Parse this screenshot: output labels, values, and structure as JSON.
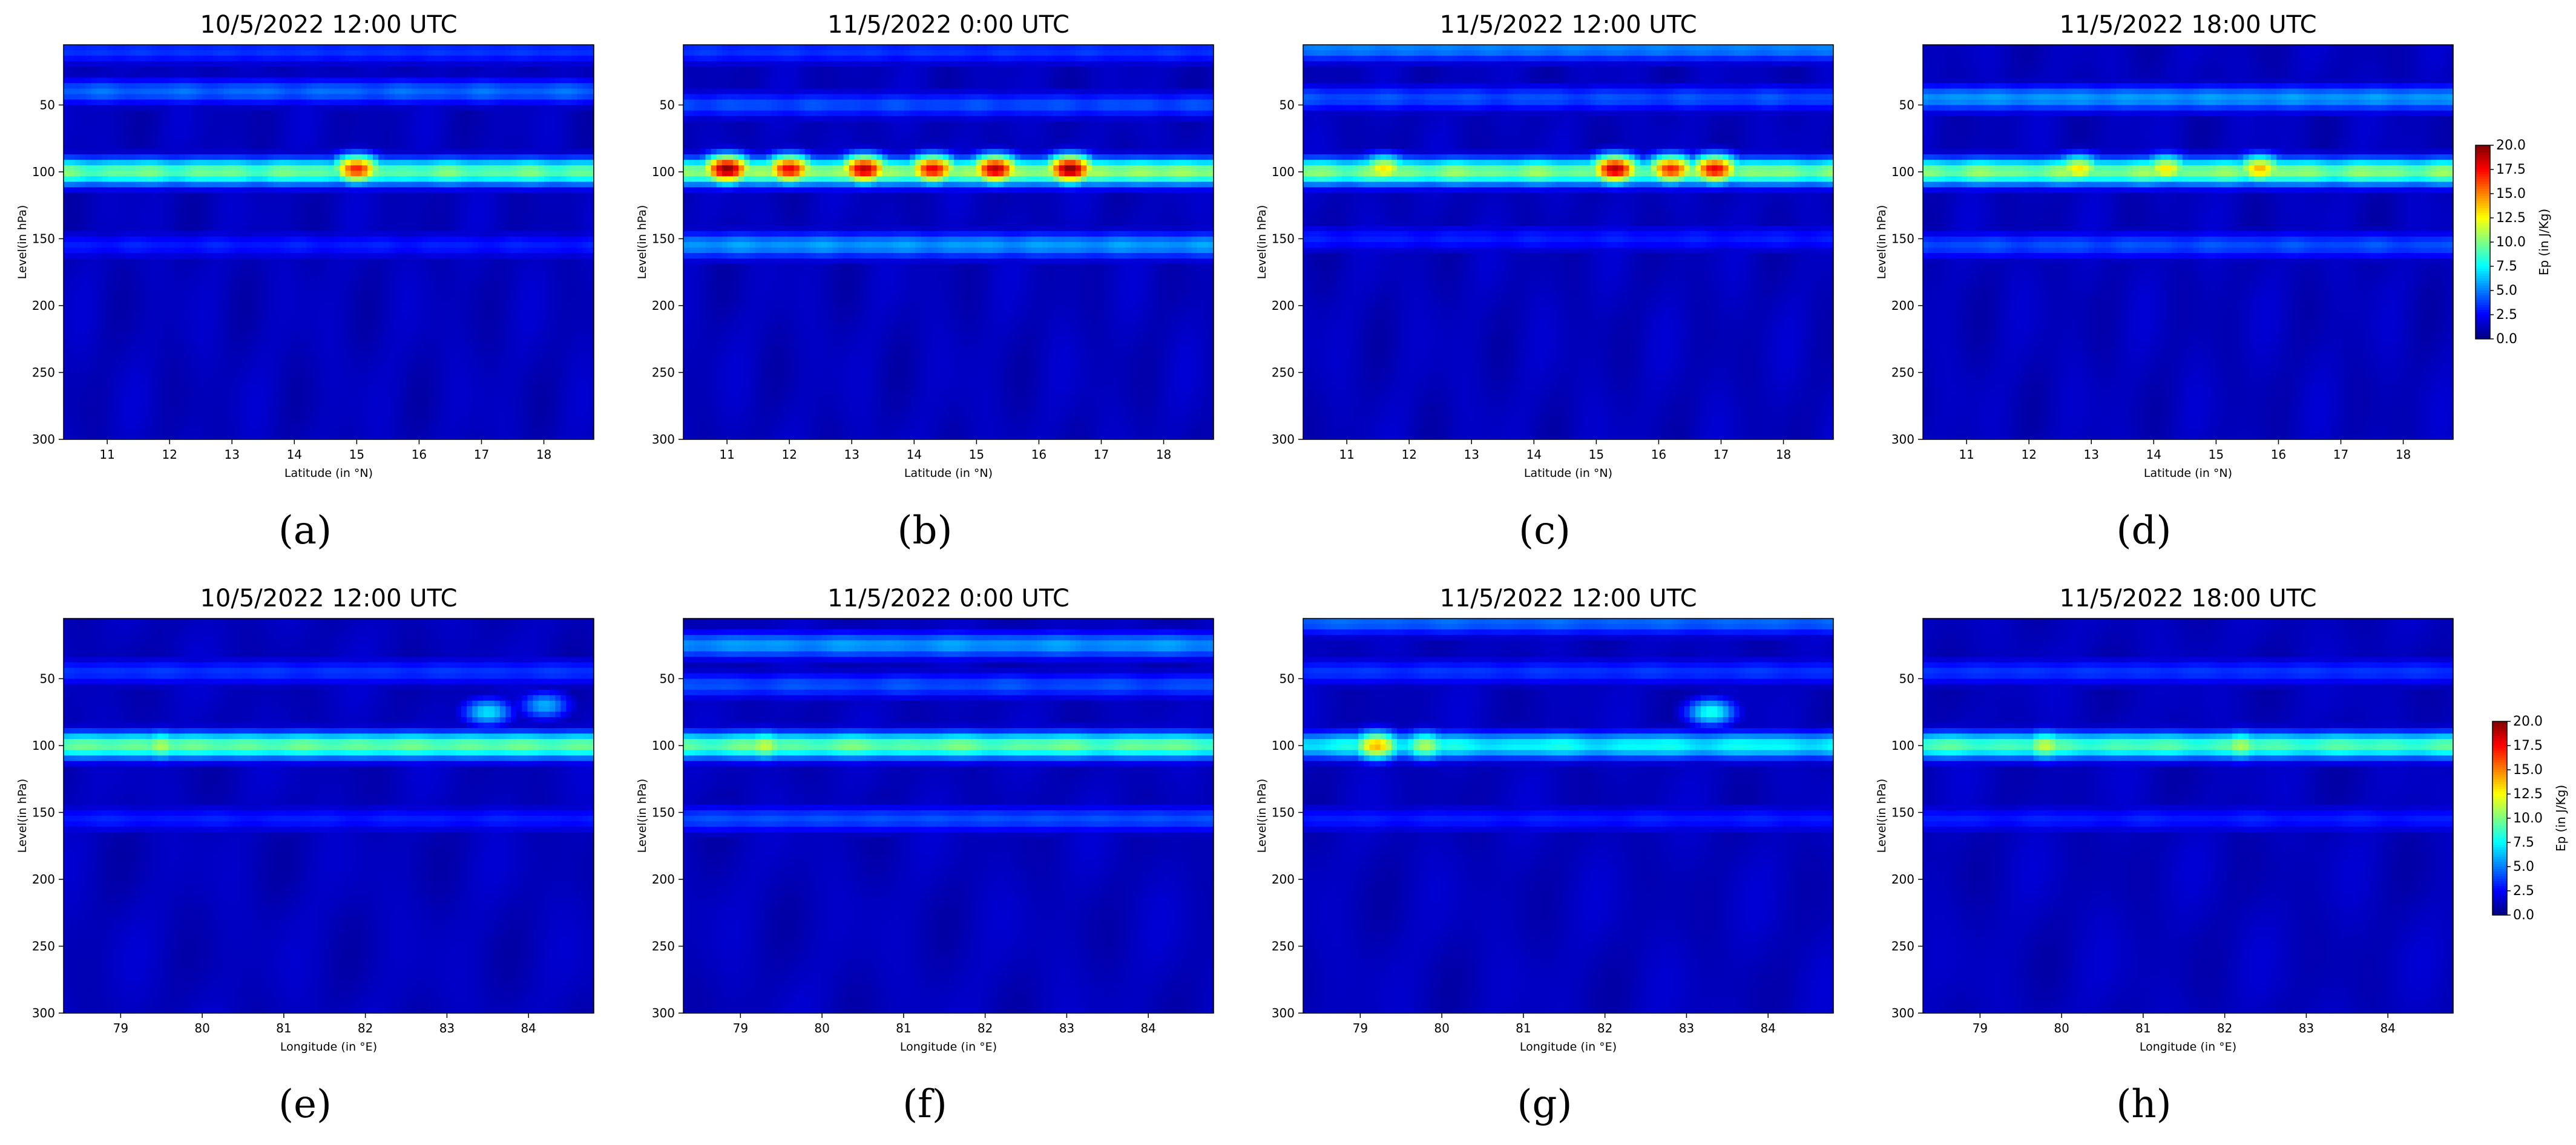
{
  "figure": {
    "colormap": "jet",
    "colorbar": {
      "label": "Ep (in J/Kg)",
      "ticks": [
        "0.0",
        "2.5",
        "5.0",
        "7.5",
        "10.0",
        "12.5",
        "15.0",
        "17.5",
        "20.0"
      ],
      "range": [
        0,
        20
      ]
    }
  },
  "chart_data": [
    {
      "id": "a",
      "caption": "(a)",
      "type": "heatmap",
      "title": "10/5/2022  12:00 UTC",
      "xlabel": "Latitude (in °N)",
      "ylabel": "Level(in hPa)",
      "xlim": [
        10.3,
        18.8
      ],
      "ylim": [
        300,
        5
      ],
      "y_inverted": true,
      "xticks": [
        "11",
        "12",
        "13",
        "14",
        "15",
        "16",
        "17",
        "18"
      ],
      "yticks": [
        "50",
        "100",
        "150",
        "200",
        "250",
        "300"
      ],
      "zlim": [
        0,
        20
      ],
      "bands": [
        {
          "level": 100,
          "value": 9.5
        },
        {
          "level": 40,
          "value": 4.5
        },
        {
          "level": 10,
          "value": 3.5
        },
        {
          "level": 155,
          "value": 3.0
        }
      ],
      "hotspots": [
        {
          "x": 15.0,
          "level": 98,
          "value": 17
        }
      ]
    },
    {
      "id": "b",
      "caption": "(b)",
      "type": "heatmap",
      "title": "11/5/2022  0:00 UTC",
      "xlabel": "Latitude (in °N)",
      "ylabel": "Level(in hPa)",
      "xlim": [
        10.3,
        18.8
      ],
      "ylim": [
        300,
        5
      ],
      "y_inverted": true,
      "xticks": [
        "11",
        "12",
        "13",
        "14",
        "15",
        "16",
        "17",
        "18"
      ],
      "yticks": [
        "50",
        "100",
        "150",
        "200",
        "250",
        "300"
      ],
      "zlim": [
        0,
        20
      ],
      "bands": [
        {
          "level": 100,
          "value": 10.5
        },
        {
          "level": 50,
          "value": 4.0
        },
        {
          "level": 10,
          "value": 3.5
        },
        {
          "level": 155,
          "value": 5.5
        }
      ],
      "hotspots": [
        {
          "x": 11.0,
          "level": 98,
          "value": 20
        },
        {
          "x": 12.0,
          "level": 98,
          "value": 18
        },
        {
          "x": 13.2,
          "level": 98,
          "value": 19
        },
        {
          "x": 14.3,
          "level": 98,
          "value": 18
        },
        {
          "x": 15.3,
          "level": 98,
          "value": 19
        },
        {
          "x": 16.5,
          "level": 98,
          "value": 20
        }
      ]
    },
    {
      "id": "c",
      "caption": "(c)",
      "type": "heatmap",
      "title": "11/5/2022  12:00 UTC",
      "xlabel": "Latitude (in °N)",
      "ylabel": "Level(in hPa)",
      "xlim": [
        10.3,
        18.8
      ],
      "ylim": [
        300,
        5
      ],
      "y_inverted": true,
      "xticks": [
        "11",
        "12",
        "13",
        "14",
        "15",
        "16",
        "17",
        "18"
      ],
      "yticks": [
        "50",
        "100",
        "150",
        "200",
        "250",
        "300"
      ],
      "zlim": [
        0,
        20
      ],
      "bands": [
        {
          "level": 100,
          "value": 10.0
        },
        {
          "level": 45,
          "value": 4.0
        },
        {
          "level": 8,
          "value": 5.0
        },
        {
          "level": 150,
          "value": 3.0
        }
      ],
      "hotspots": [
        {
          "x": 11.6,
          "level": 98,
          "value": 13
        },
        {
          "x": 15.3,
          "level": 98,
          "value": 19
        },
        {
          "x": 16.2,
          "level": 98,
          "value": 17
        },
        {
          "x": 16.9,
          "level": 98,
          "value": 18
        }
      ]
    },
    {
      "id": "d",
      "caption": "(d)",
      "type": "heatmap",
      "title": "11/5/2022  18:00 UTC",
      "xlabel": "Latitude (in °N)",
      "ylabel": "Level(in hPa)",
      "xlim": [
        10.3,
        18.8
      ],
      "ylim": [
        300,
        5
      ],
      "y_inverted": true,
      "xticks": [
        "11",
        "12",
        "13",
        "14",
        "15",
        "16",
        "17",
        "18"
      ],
      "yticks": [
        "50",
        "100",
        "150",
        "200",
        "250",
        "300"
      ],
      "zlim": [
        0,
        20
      ],
      "bands": [
        {
          "level": 100,
          "value": 10.0
        },
        {
          "level": 45,
          "value": 5.5
        },
        {
          "level": 155,
          "value": 4.0
        }
      ],
      "hotspots": [
        {
          "x": 12.8,
          "level": 98,
          "value": 13
        },
        {
          "x": 14.2,
          "level": 98,
          "value": 13
        },
        {
          "x": 15.7,
          "level": 98,
          "value": 14
        }
      ]
    },
    {
      "id": "e",
      "caption": "(e)",
      "type": "heatmap",
      "title": "10/5/2022  12:00 UTC",
      "xlabel": "Longitude (in °E)",
      "ylabel": "Level(in hPa)",
      "xlim": [
        78.3,
        84.8
      ],
      "ylim": [
        300,
        5
      ],
      "y_inverted": true,
      "xticks": [
        "79",
        "80",
        "81",
        "82",
        "83",
        "84"
      ],
      "yticks": [
        "50",
        "100",
        "150",
        "200",
        "250",
        "300"
      ],
      "zlim": [
        0,
        20
      ],
      "bands": [
        {
          "level": 100,
          "value": 9.5
        },
        {
          "level": 45,
          "value": 3.5
        },
        {
          "level": 155,
          "value": 3.0
        }
      ],
      "hotspots": [
        {
          "x": 79.5,
          "level": 100,
          "value": 11
        },
        {
          "x": 83.5,
          "level": 75,
          "value": 7
        },
        {
          "x": 84.2,
          "level": 70,
          "value": 6
        }
      ]
    },
    {
      "id": "f",
      "caption": "(f)",
      "type": "heatmap",
      "title": "11/5/2022  0:00 UTC",
      "xlabel": "Longitude (in °E)",
      "ylabel": "Level(in hPa)",
      "xlim": [
        78.3,
        84.8
      ],
      "ylim": [
        300,
        5
      ],
      "y_inverted": true,
      "xticks": [
        "79",
        "80",
        "81",
        "82",
        "83",
        "84"
      ],
      "yticks": [
        "50",
        "100",
        "150",
        "200",
        "250",
        "300"
      ],
      "zlim": [
        0,
        20
      ],
      "bands": [
        {
          "level": 100,
          "value": 9.5
        },
        {
          "level": 25,
          "value": 5.5
        },
        {
          "level": 55,
          "value": 4.0
        },
        {
          "level": 155,
          "value": 4.0
        }
      ],
      "hotspots": [
        {
          "x": 79.3,
          "level": 100,
          "value": 11.5
        }
      ]
    },
    {
      "id": "g",
      "caption": "(g)",
      "type": "heatmap",
      "title": "11/5/2022  12:00 UTC",
      "xlabel": "Longitude (in °E)",
      "ylabel": "Level(in hPa)",
      "xlim": [
        78.3,
        84.8
      ],
      "ylim": [
        300,
        5
      ],
      "y_inverted": true,
      "xticks": [
        "79",
        "80",
        "81",
        "82",
        "83",
        "84"
      ],
      "yticks": [
        "50",
        "100",
        "150",
        "200",
        "250",
        "300"
      ],
      "zlim": [
        0,
        20
      ],
      "bands": [
        {
          "level": 100,
          "value": 7.5
        },
        {
          "level": 45,
          "value": 3.5
        },
        {
          "level": 8,
          "value": 4.5
        },
        {
          "level": 155,
          "value": 3.0
        }
      ],
      "hotspots": [
        {
          "x": 79.2,
          "level": 100,
          "value": 14
        },
        {
          "x": 79.8,
          "level": 100,
          "value": 11
        },
        {
          "x": 83.3,
          "level": 75,
          "value": 8
        }
      ]
    },
    {
      "id": "h",
      "caption": "(h)",
      "type": "heatmap",
      "title": "11/5/2022  18:00 UTC",
      "xlabel": "Longitude (in °E)",
      "ylabel": "Level(in hPa)",
      "xlim": [
        78.3,
        84.8
      ],
      "ylim": [
        300,
        5
      ],
      "y_inverted": true,
      "xticks": [
        "79",
        "80",
        "81",
        "82",
        "83",
        "84"
      ],
      "yticks": [
        "50",
        "100",
        "150",
        "200",
        "250",
        "300"
      ],
      "zlim": [
        0,
        20
      ],
      "bands": [
        {
          "level": 100,
          "value": 9.0
        },
        {
          "level": 45,
          "value": 3.5
        },
        {
          "level": 155,
          "value": 3.0
        }
      ],
      "hotspots": [
        {
          "x": 79.8,
          "level": 100,
          "value": 11.5
        },
        {
          "x": 82.2,
          "level": 100,
          "value": 11
        }
      ]
    }
  ]
}
